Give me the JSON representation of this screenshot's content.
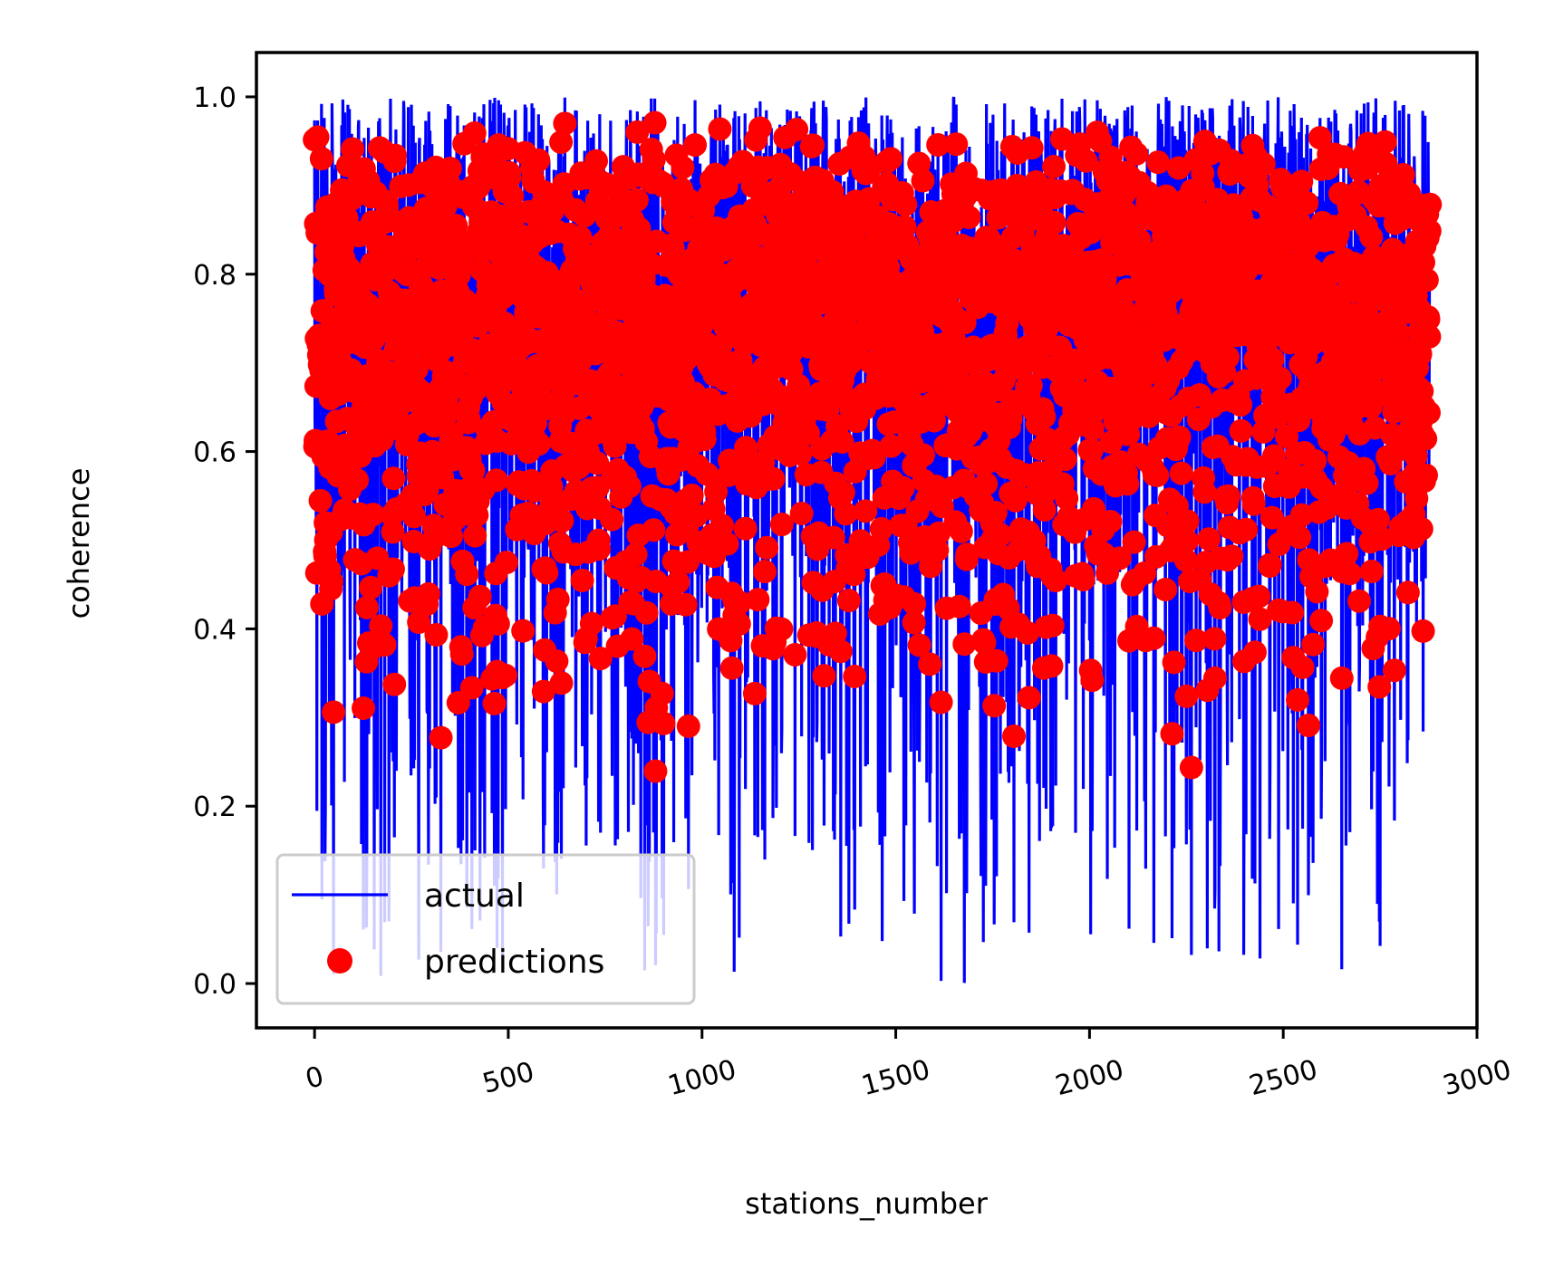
{
  "chart_data": {
    "type": "line",
    "xlabel": "stations_number",
    "ylabel": "coherence",
    "xlim": [
      -150,
      3000
    ],
    "ylim": [
      -0.05,
      1.05
    ],
    "xticks": [
      0,
      500,
      1000,
      1500,
      2000,
      2500,
      3000
    ],
    "xtick_labels": [
      "0",
      "500",
      "1000",
      "1500",
      "2000",
      "2500",
      "3000"
    ],
    "yticks": [
      0.0,
      0.2,
      0.4,
      0.6,
      0.8,
      1.0
    ],
    "ytick_labels": [
      "0.0",
      "0.2",
      "0.4",
      "0.6",
      "0.8",
      "1.0"
    ],
    "x_tick_rotation_deg": 15,
    "grid": false,
    "legend_position": "lower-left",
    "n_points": 2880,
    "series": [
      {
        "name": "actual",
        "style": "line",
        "color": "#0000ff",
        "x_range": [
          0,
          2879
        ],
        "value_range": [
          0.0,
          1.0
        ],
        "typical_range": [
          0.15,
          0.99
        ]
      },
      {
        "name": "predictions",
        "style": "markers",
        "color": "#ff0000",
        "x_range": [
          0,
          2879
        ],
        "value_range": [
          0.2,
          0.99
        ],
        "typical_range": [
          0.45,
          0.98
        ]
      }
    ]
  }
}
